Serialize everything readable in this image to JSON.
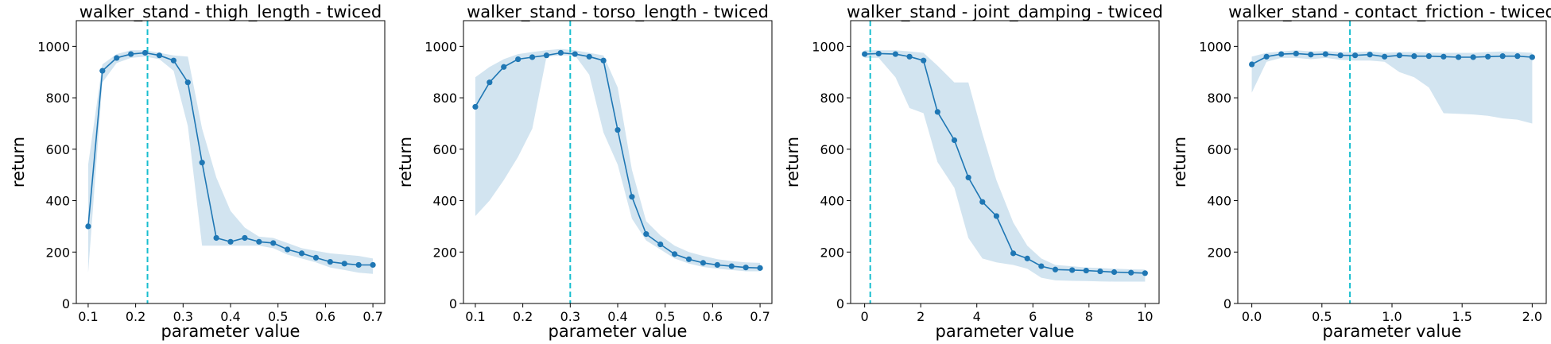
{
  "chart_data": [
    {
      "type": "line",
      "title": "walker_stand - thigh_length - twiced",
      "xlabel": "parameter value",
      "ylabel": "return",
      "xlim": [
        0.075,
        0.725
      ],
      "ylim": [
        0,
        1100
      ],
      "xticks": [
        0.1,
        0.2,
        0.3,
        0.4,
        0.5,
        0.6,
        0.7
      ],
      "xtick_labels": [
        "0.1",
        "0.2",
        "0.3",
        "0.4",
        "0.5",
        "0.6",
        "0.7"
      ],
      "yticks": [
        0,
        200,
        400,
        600,
        800,
        1000
      ],
      "ytick_labels": [
        "0",
        "200",
        "400",
        "600",
        "800",
        "1000"
      ],
      "vline": 0.225,
      "x": [
        0.1,
        0.13,
        0.16,
        0.19,
        0.22,
        0.25,
        0.28,
        0.31,
        0.34,
        0.37,
        0.4,
        0.43,
        0.46,
        0.49,
        0.52,
        0.55,
        0.58,
        0.61,
        0.64,
        0.67,
        0.7
      ],
      "y": [
        300,
        905,
        955,
        970,
        975,
        965,
        945,
        860,
        548,
        255,
        240,
        255,
        240,
        235,
        210,
        195,
        178,
        162,
        155,
        150,
        150
      ],
      "lower": [
        120,
        860,
        935,
        955,
        960,
        950,
        905,
        690,
        225,
        225,
        225,
        225,
        225,
        215,
        190,
        175,
        160,
        140,
        130,
        120,
        115
      ],
      "upper": [
        540,
        930,
        970,
        985,
        985,
        975,
        965,
        960,
        680,
        490,
        360,
        295,
        260,
        255,
        235,
        215,
        205,
        195,
        190,
        185,
        175
      ]
    },
    {
      "type": "line",
      "title": "walker_stand - torso_length - twiced",
      "xlabel": "parameter value",
      "ylabel": "return",
      "xlim": [
        0.075,
        0.725
      ],
      "ylim": [
        0,
        1100
      ],
      "xticks": [
        0.1,
        0.2,
        0.3,
        0.4,
        0.5,
        0.6,
        0.7
      ],
      "xtick_labels": [
        "0.1",
        "0.2",
        "0.3",
        "0.4",
        "0.5",
        "0.6",
        "0.7"
      ],
      "yticks": [
        0,
        200,
        400,
        600,
        800,
        1000
      ],
      "ytick_labels": [
        "0",
        "200",
        "400",
        "600",
        "800",
        "1000"
      ],
      "vline": 0.3,
      "x": [
        0.1,
        0.13,
        0.16,
        0.19,
        0.22,
        0.25,
        0.28,
        0.31,
        0.34,
        0.37,
        0.4,
        0.43,
        0.46,
        0.49,
        0.52,
        0.55,
        0.58,
        0.61,
        0.64,
        0.67,
        0.7
      ],
      "y": [
        765,
        860,
        920,
        950,
        958,
        965,
        975,
        970,
        960,
        945,
        675,
        415,
        270,
        230,
        192,
        172,
        158,
        150,
        145,
        140,
        138
      ],
      "lower": [
        340,
        400,
        480,
        570,
        680,
        960,
        965,
        965,
        890,
        665,
        540,
        330,
        245,
        210,
        175,
        155,
        142,
        135,
        130,
        125,
        125
      ],
      "upper": [
        880,
        920,
        950,
        970,
        978,
        985,
        990,
        985,
        975,
        965,
        840,
        520,
        320,
        265,
        225,
        200,
        185,
        172,
        165,
        160,
        158
      ]
    },
    {
      "type": "line",
      "title": "walker_stand - joint_damping - twiced",
      "xlabel": "parameter value",
      "ylabel": "return",
      "xlim": [
        -0.5,
        10.5
      ],
      "ylim": [
        0,
        1100
      ],
      "xticks": [
        0,
        2,
        4,
        6,
        8,
        10
      ],
      "xtick_labels": [
        "0",
        "2",
        "4",
        "6",
        "8",
        "10"
      ],
      "yticks": [
        0,
        200,
        400,
        600,
        800,
        1000
      ],
      "ytick_labels": [
        "0",
        "200",
        "400",
        "600",
        "800",
        "1000"
      ],
      "vline": 0.2,
      "x": [
        0,
        0.5,
        1.1,
        1.6,
        2.1,
        2.6,
        3.2,
        3.7,
        4.2,
        4.7,
        5.3,
        5.8,
        6.3,
        6.8,
        7.4,
        7.9,
        8.4,
        8.9,
        9.5,
        10
      ],
      "y": [
        970,
        972,
        970,
        960,
        945,
        745,
        635,
        490,
        395,
        340,
        195,
        175,
        145,
        132,
        130,
        128,
        125,
        122,
        120,
        118
      ],
      "lower": [
        955,
        955,
        880,
        760,
        740,
        550,
        450,
        255,
        175,
        160,
        150,
        135,
        100,
        90,
        88,
        87,
        86,
        85,
        85,
        85
      ],
      "upper": [
        985,
        985,
        985,
        980,
        975,
        925,
        860,
        860,
        660,
        480,
        315,
        225,
        175,
        150,
        145,
        140,
        138,
        135,
        133,
        132
      ]
    },
    {
      "type": "line",
      "title": "walker_stand - contact_friction - twiced",
      "xlabel": "parameter value",
      "ylabel": "return",
      "xlim": [
        -0.1,
        2.1
      ],
      "ylim": [
        0,
        1100
      ],
      "xticks": [
        0.0,
        0.5,
        1.0,
        1.5,
        2.0
      ],
      "xtick_labels": [
        "0.0",
        "0.5",
        "1.0",
        "1.5",
        "2.0"
      ],
      "yticks": [
        0,
        200,
        400,
        600,
        800,
        1000
      ],
      "ytick_labels": [
        "0",
        "200",
        "400",
        "600",
        "800",
        "1000"
      ],
      "vline": 0.7,
      "x": [
        0.0,
        0.105,
        0.21,
        0.316,
        0.421,
        0.526,
        0.632,
        0.737,
        0.842,
        0.947,
        1.053,
        1.158,
        1.263,
        1.368,
        1.474,
        1.579,
        1.684,
        1.789,
        1.895,
        2.0
      ],
      "y": [
        930,
        960,
        970,
        972,
        968,
        970,
        965,
        965,
        968,
        960,
        965,
        962,
        962,
        960,
        958,
        958,
        960,
        962,
        962,
        958
      ],
      "lower": [
        820,
        940,
        955,
        955,
        950,
        955,
        948,
        945,
        945,
        940,
        900,
        880,
        840,
        740,
        738,
        735,
        730,
        720,
        715,
        700
      ],
      "upper": [
        960,
        975,
        980,
        985,
        980,
        982,
        978,
        978,
        980,
        975,
        978,
        978,
        976,
        975,
        975,
        975,
        978,
        980,
        978,
        975
      ]
    }
  ]
}
